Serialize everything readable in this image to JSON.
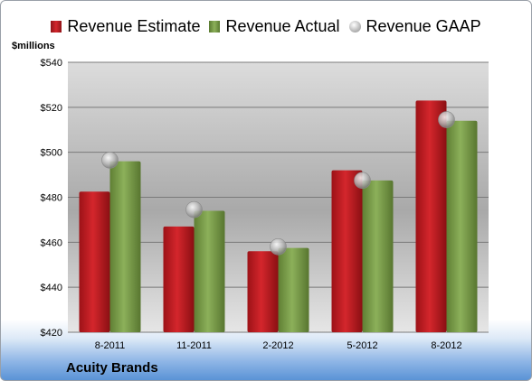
{
  "legend": {
    "estimate": "Revenue Estimate",
    "actual": "Revenue Actual",
    "gaap": "Revenue GAAP"
  },
  "units_label": "$millions",
  "company_label": "Acuity Brands",
  "colors": {
    "estimate": "#d4262c",
    "actual": "#8cb05a",
    "gaap": "#b8b8b8"
  },
  "chart_data": {
    "type": "bar",
    "categories": [
      "8-2011",
      "11-2011",
      "2-2012",
      "5-2012",
      "8-2012"
    ],
    "series": [
      {
        "name": "Revenue Estimate",
        "values": [
          482.5,
          467,
          456,
          492,
          523
        ]
      },
      {
        "name": "Revenue Actual",
        "values": [
          496,
          474,
          457.5,
          487.5,
          514
        ]
      },
      {
        "name": "Revenue GAAP",
        "values": [
          496.5,
          474.5,
          458,
          487.5,
          514.5
        ]
      }
    ],
    "ylabel": "$millions",
    "ylim": [
      420,
      540
    ],
    "yticks": [
      420,
      440,
      460,
      480,
      500,
      520,
      540
    ],
    "ytick_labels": [
      "$420",
      "$440",
      "$460",
      "$480",
      "$500",
      "$520",
      "$540"
    ],
    "grid": true,
    "legend_position": "top"
  }
}
